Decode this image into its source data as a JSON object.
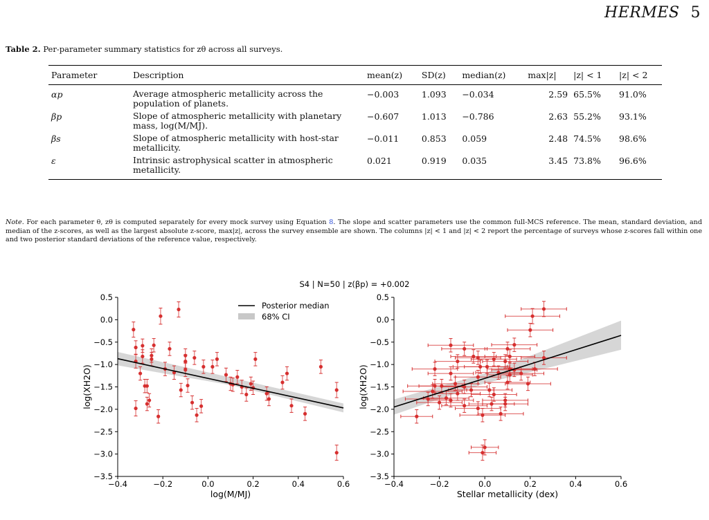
{
  "header": {
    "title": "HERMES",
    "page": "5"
  },
  "table": {
    "label": "Table 2.",
    "caption": "Per-parameter summary statistics for zθ across all surveys.",
    "columns": [
      "Parameter",
      "Description",
      "mean(z)",
      "SD(z)",
      "median(z)",
      "max|z|",
      "|z| < 1",
      "|z| < 2"
    ],
    "rows": [
      {
        "param": "αp",
        "desc": "Average atmospheric metallicity across the population of planets.",
        "mean": "−0.003",
        "sd": "1.093",
        "median": "−0.034",
        "max": "2.59",
        "lt1": "65.5%",
        "lt2": "91.0%"
      },
      {
        "param": "βp",
        "desc": "Slope of atmospheric metallicity with planetary mass, log(M/MJ).",
        "mean": "−0.607",
        "sd": "1.013",
        "median": "−0.786",
        "max": "2.63",
        "lt1": "55.2%",
        "lt2": "93.1%"
      },
      {
        "param": "βs",
        "desc": "Slope of atmospheric metallicity with host-star metallicity.",
        "mean": "−0.011",
        "sd": "0.853",
        "median": "0.059",
        "max": "2.48",
        "lt1": "74.5%",
        "lt2": "98.6%"
      },
      {
        "param": "ε",
        "desc": "Intrinsic astrophysical scatter in atmospheric metallicity.",
        "mean": "0.021",
        "sd": "0.919",
        "median": "0.035",
        "max": "3.45",
        "lt1": "73.8%",
        "lt2": "96.6%"
      }
    ],
    "note_label": "Note.",
    "note_a": "For each parameter θ, zθ is computed separately for every mock survey using Equation ",
    "note_ref": "8",
    "note_b": ". The slope and scatter parameters use the common full-MCS reference. The mean, standard deviation, and median of the z-scores, as well as the largest absolute z-score, max|z|, across the survey ensemble are shown. The columns |z| < 1 and |z| < 2 report the percentage of surveys whose z-scores fall within one and two posterior standard deviations of the reference value, respectively."
  },
  "colors": {
    "points": "#d62f2f",
    "line": "#000000",
    "ci": "#c8c8c8"
  },
  "chart_data": [
    {
      "type": "scatter",
      "title": "S4 | N=50 | z(βp) = +0.002",
      "xlabel": "log(M/MJ)",
      "ylabel": "log(XH2O)",
      "xlim": [
        -0.4,
        0.6
      ],
      "ylim": [
        -3.5,
        0.5
      ],
      "xticks": [
        "−0.4",
        "−0.2",
        "0.0",
        "0.2",
        "0.4",
        "0.6"
      ],
      "yticks": [
        "−3.5",
        "−3.0",
        "−2.5",
        "−2.0",
        "−1.5",
        "−1.0",
        "−0.5",
        "0.0",
        "0.5"
      ],
      "legend": [
        "Posterior median",
        "68% CI"
      ],
      "legend_position": "top-right",
      "median_line": [
        [
          -0.4,
          -0.87
        ],
        [
          0.6,
          -1.97
        ]
      ],
      "ci_band": {
        "x": [
          -0.4,
          0.1,
          0.6
        ],
        "lower": [
          -1.02,
          -1.46,
          -2.07
        ],
        "upper": [
          -0.72,
          -1.29,
          -1.87
        ]
      },
      "points": [
        {
          "x": -0.33,
          "y": -0.22,
          "e": 0.17
        },
        {
          "x": -0.32,
          "y": -0.62,
          "e": 0.15
        },
        {
          "x": -0.32,
          "y": -0.93,
          "e": 0.15
        },
        {
          "x": -0.32,
          "y": -1.98,
          "e": 0.17
        },
        {
          "x": -0.3,
          "y": -1.2,
          "e": 0.15
        },
        {
          "x": -0.29,
          "y": -0.82,
          "e": 0.15
        },
        {
          "x": -0.29,
          "y": -0.58,
          "e": 0.15
        },
        {
          "x": -0.28,
          "y": -1.48,
          "e": 0.15
        },
        {
          "x": -0.27,
          "y": -1.88,
          "e": 0.15
        },
        {
          "x": -0.27,
          "y": -1.48,
          "e": 0.15
        },
        {
          "x": -0.26,
          "y": -1.8,
          "e": 0.15
        },
        {
          "x": -0.25,
          "y": -0.88,
          "e": 0.15
        },
        {
          "x": -0.25,
          "y": -0.8,
          "e": 0.15
        },
        {
          "x": -0.24,
          "y": -0.57,
          "e": 0.15
        },
        {
          "x": -0.22,
          "y": -2.16,
          "e": 0.15
        },
        {
          "x": -0.21,
          "y": 0.08,
          "e": 0.18
        },
        {
          "x": -0.19,
          "y": -1.1,
          "e": 0.15
        },
        {
          "x": -0.17,
          "y": -0.65,
          "e": 0.15
        },
        {
          "x": -0.15,
          "y": -1.18,
          "e": 0.15
        },
        {
          "x": -0.13,
          "y": 0.23,
          "e": 0.17
        },
        {
          "x": -0.12,
          "y": -1.57,
          "e": 0.15
        },
        {
          "x": -0.1,
          "y": -1.12,
          "e": 0.15
        },
        {
          "x": -0.1,
          "y": -0.93,
          "e": 0.15
        },
        {
          "x": -0.1,
          "y": -0.8,
          "e": 0.15
        },
        {
          "x": -0.09,
          "y": -1.47,
          "e": 0.15
        },
        {
          "x": -0.07,
          "y": -1.85,
          "e": 0.15
        },
        {
          "x": -0.06,
          "y": -0.85,
          "e": 0.15
        },
        {
          "x": -0.05,
          "y": -2.13,
          "e": 0.15
        },
        {
          "x": -0.03,
          "y": -1.93,
          "e": 0.15
        },
        {
          "x": -0.02,
          "y": -1.05,
          "e": 0.15
        },
        {
          "x": 0.02,
          "y": -1.05,
          "e": 0.15
        },
        {
          "x": 0.04,
          "y": -0.88,
          "e": 0.15
        },
        {
          "x": 0.08,
          "y": -1.23,
          "e": 0.15
        },
        {
          "x": 0.1,
          "y": -1.43,
          "e": 0.15
        },
        {
          "x": 0.11,
          "y": -1.45,
          "e": 0.15
        },
        {
          "x": 0.13,
          "y": -1.28,
          "e": 0.15
        },
        {
          "x": 0.15,
          "y": -1.5,
          "e": 0.15
        },
        {
          "x": 0.17,
          "y": -1.67,
          "e": 0.15
        },
        {
          "x": 0.19,
          "y": -1.43,
          "e": 0.15
        },
        {
          "x": 0.21,
          "y": -0.88,
          "e": 0.15
        },
        {
          "x": 0.26,
          "y": -1.65,
          "e": 0.15
        },
        {
          "x": 0.27,
          "y": -1.77,
          "e": 0.15
        },
        {
          "x": 0.33,
          "y": -1.4,
          "e": 0.15
        },
        {
          "x": 0.35,
          "y": -1.2,
          "e": 0.15
        },
        {
          "x": 0.37,
          "y": -1.92,
          "e": 0.15
        },
        {
          "x": 0.43,
          "y": -2.1,
          "e": 0.15
        },
        {
          "x": 0.5,
          "y": -1.05,
          "e": 0.15
        },
        {
          "x": 0.57,
          "y": -1.57,
          "e": 0.17
        },
        {
          "x": 0.57,
          "y": -2.97,
          "e": 0.17
        },
        {
          "x": 0.2,
          "y": -1.52,
          "e": 0.15
        }
      ]
    },
    {
      "type": "scatter",
      "xlabel": "Stellar metallicity (dex)",
      "ylabel": "log(XH2O)",
      "xlim": [
        -0.4,
        0.6
      ],
      "ylim": [
        -3.5,
        0.5
      ],
      "xticks": [
        "−0.4",
        "−0.2",
        "0.0",
        "0.2",
        "0.4",
        "0.6"
      ],
      "yticks": [
        "−3.5",
        "−3.0",
        "−2.5",
        "−2.0",
        "−1.5",
        "−1.0",
        "−0.5",
        "0.0",
        "0.5"
      ],
      "median_line": [
        [
          -0.4,
          -1.95
        ],
        [
          0.6,
          -0.35
        ]
      ],
      "ci_band": {
        "x": [
          -0.4,
          0.0,
          0.6
        ],
        "lower": [
          -2.12,
          -1.42,
          -0.67
        ],
        "upper": [
          -1.78,
          -1.2,
          -0.02
        ]
      },
      "points": [
        {
          "x": 0.26,
          "y": 0.24,
          "xe": 0.1,
          "ye": 0.17
        },
        {
          "x": 0.21,
          "y": 0.08,
          "xe": 0.12,
          "ye": 0.17
        },
        {
          "x": 0.2,
          "y": -0.23,
          "xe": 0.1,
          "ye": 0.15
        },
        {
          "x": 0.26,
          "y": -0.85,
          "xe": 0.1,
          "ye": 0.15
        },
        {
          "x": 0.13,
          "y": -0.56,
          "xe": 0.1,
          "ye": 0.15
        },
        {
          "x": 0.1,
          "y": -0.65,
          "xe": 0.1,
          "ye": 0.15
        },
        {
          "x": 0.11,
          "y": -0.82,
          "xe": 0.11,
          "ye": 0.15
        },
        {
          "x": -0.15,
          "y": -0.57,
          "xe": 0.1,
          "ye": 0.15
        },
        {
          "x": -0.09,
          "y": -0.65,
          "xe": 0.1,
          "ye": 0.15
        },
        {
          "x": -0.05,
          "y": -0.82,
          "xe": 0.1,
          "ye": 0.15
        },
        {
          "x": -0.03,
          "y": -0.85,
          "xe": 0.1,
          "ye": 0.15
        },
        {
          "x": 0.04,
          "y": -0.88,
          "xe": 0.1,
          "ye": 0.15
        },
        {
          "x": -0.12,
          "y": -0.93,
          "xe": 0.1,
          "ye": 0.15
        },
        {
          "x": 0.09,
          "y": -0.93,
          "xe": 0.1,
          "ye": 0.15
        },
        {
          "x": -0.02,
          "y": -1.05,
          "xe": 0.12,
          "ye": 0.15
        },
        {
          "x": 0.01,
          "y": -1.05,
          "xe": 0.1,
          "ye": 0.15
        },
        {
          "x": 0.11,
          "y": -1.1,
          "xe": 0.1,
          "ye": 0.15
        },
        {
          "x": 0.13,
          "y": -1.12,
          "xe": 0.1,
          "ye": 0.15
        },
        {
          "x": 0.22,
          "y": -1.1,
          "xe": 0.1,
          "ye": 0.15
        },
        {
          "x": -0.22,
          "y": -1.1,
          "xe": 0.1,
          "ye": 0.15
        },
        {
          "x": 0.06,
          "y": -1.18,
          "xe": 0.1,
          "ye": 0.15
        },
        {
          "x": -0.15,
          "y": -1.2,
          "xe": 0.1,
          "ye": 0.15
        },
        {
          "x": 0.11,
          "y": -1.23,
          "xe": 0.1,
          "ye": 0.15
        },
        {
          "x": 0.16,
          "y": -1.2,
          "xe": 0.1,
          "ye": 0.15
        },
        {
          "x": -0.03,
          "y": -1.28,
          "xe": 0.1,
          "ye": 0.15
        },
        {
          "x": 0.19,
          "y": -1.43,
          "xe": 0.1,
          "ye": 0.15
        },
        {
          "x": -0.13,
          "y": -1.43,
          "xe": 0.1,
          "ye": 0.15
        },
        {
          "x": 0.1,
          "y": -1.4,
          "xe": 0.1,
          "ye": 0.15
        },
        {
          "x": -0.19,
          "y": -1.48,
          "xe": 0.1,
          "ye": 0.15
        },
        {
          "x": -0.09,
          "y": -1.5,
          "xe": 0.1,
          "ye": 0.15
        },
        {
          "x": -0.06,
          "y": -1.57,
          "xe": 0.1,
          "ye": 0.15
        },
        {
          "x": 0.02,
          "y": -1.57,
          "xe": 0.1,
          "ye": 0.15
        },
        {
          "x": -0.23,
          "y": -1.6,
          "xe": 0.13,
          "ye": 0.15
        },
        {
          "x": -0.12,
          "y": -1.65,
          "xe": 0.1,
          "ye": 0.15
        },
        {
          "x": 0.04,
          "y": -1.67,
          "xe": 0.1,
          "ye": 0.15
        },
        {
          "x": -0.17,
          "y": -1.75,
          "xe": 0.1,
          "ye": 0.15
        },
        {
          "x": -0.25,
          "y": -1.77,
          "xe": 0.1,
          "ye": 0.15
        },
        {
          "x": -0.15,
          "y": -1.8,
          "xe": 0.1,
          "ye": 0.15
        },
        {
          "x": 0.09,
          "y": -1.8,
          "xe": 0.1,
          "ye": 0.15
        },
        {
          "x": -0.2,
          "y": -1.85,
          "xe": 0.1,
          "ye": 0.15
        },
        {
          "x": 0.03,
          "y": -1.88,
          "xe": 0.1,
          "ye": 0.15
        },
        {
          "x": 0.09,
          "y": -1.88,
          "xe": 0.1,
          "ye": 0.15
        },
        {
          "x": -0.09,
          "y": -1.92,
          "xe": 0.1,
          "ye": 0.15
        },
        {
          "x": -0.03,
          "y": -1.98,
          "xe": 0.1,
          "ye": 0.15
        },
        {
          "x": 0.07,
          "y": -2.1,
          "xe": 0.1,
          "ye": 0.15
        },
        {
          "x": -0.01,
          "y": -2.13,
          "xe": 0.1,
          "ye": 0.15
        },
        {
          "x": -0.3,
          "y": -2.16,
          "xe": 0.07,
          "ye": 0.15
        },
        {
          "x": -0.22,
          "y": -1.48,
          "xe": 0.12,
          "ye": 0.15
        },
        {
          "x": 0.0,
          "y": -2.85,
          "xe": 0.06,
          "ye": 0.17
        },
        {
          "x": -0.01,
          "y": -2.97,
          "xe": 0.06,
          "ye": 0.17
        }
      ]
    }
  ]
}
